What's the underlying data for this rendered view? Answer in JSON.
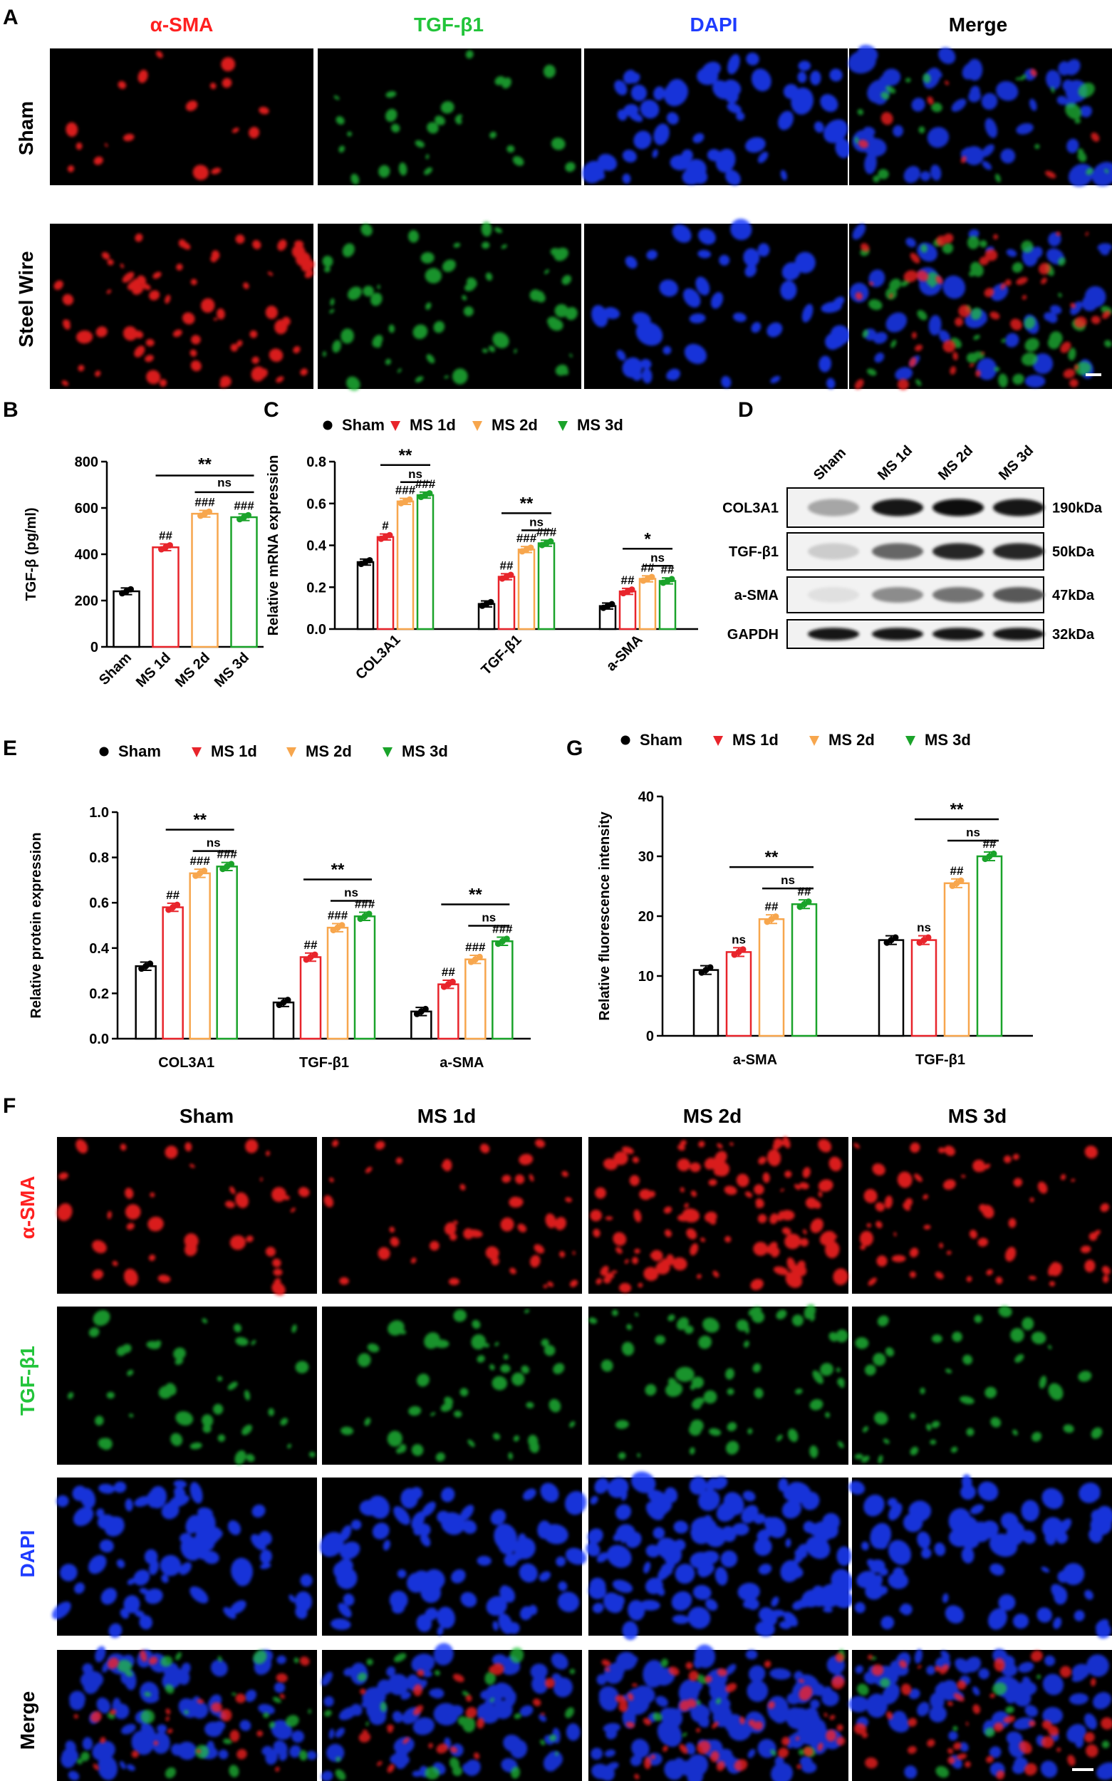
{
  "panel_labels": {
    "a": "A",
    "b": "B",
    "c": "C",
    "d": "D",
    "e": "E",
    "f": "F",
    "g": "G"
  },
  "colors": {
    "sham": "#000000",
    "ms1d": "#e8242b",
    "ms2d": "#f7a64d",
    "ms3d": "#1aa32a",
    "red_stain": "#ff2020",
    "green_stain": "#22c43a",
    "blue_stain": "#1f3cff"
  },
  "panel_a": {
    "columns": [
      "α-SMA",
      "TGF-β1",
      "DAPI",
      "Merge"
    ],
    "rows": [
      "Sham",
      "Steel Wire"
    ]
  },
  "panel_d": {
    "lanes": [
      "Sham",
      "MS 1d",
      "MS 2d",
      "MS 3d"
    ],
    "bands": [
      {
        "name": "COL3A1",
        "size": "190kDa",
        "intensity": [
          0.35,
          0.9,
          0.95,
          0.92
        ]
      },
      {
        "name": "TGF-β1",
        "size": "50kDa",
        "intensity": [
          0.2,
          0.6,
          0.85,
          0.85
        ]
      },
      {
        "name": "a-SMA",
        "size": "47kDa",
        "intensity": [
          0.12,
          0.45,
          0.55,
          0.65
        ]
      },
      {
        "name": "GAPDH",
        "size": "32kDa",
        "intensity": [
          0.9,
          0.9,
          0.9,
          0.9
        ]
      }
    ]
  },
  "panel_f": {
    "columns": [
      "Sham",
      "MS 1d",
      "MS 2d",
      "MS 3d"
    ],
    "rows": [
      "α-SMA",
      "TGF-β1",
      "DAPI",
      "Merge"
    ]
  },
  "chart_data": [
    {
      "id": "B",
      "type": "bar",
      "categories": [
        "Sham",
        "MS 1d",
        "MS 2d",
        "MS 3d"
      ],
      "values": [
        240,
        430,
        575,
        560
      ],
      "ylabel": "TGF-β (pg/ml)",
      "ylim": [
        0,
        800
      ],
      "yticks": [
        0,
        200,
        400,
        600,
        800
      ],
      "annotations": [
        "",
        "##",
        "###",
        "###"
      ],
      "brackets": [
        {
          "from": 1,
          "to": 3,
          "label": "**"
        },
        {
          "from": 2,
          "to": 3,
          "label": "ns"
        }
      ]
    },
    {
      "id": "C",
      "type": "bar",
      "categories": [
        "COL3A1",
        "TGF-β1",
        "a-SMA"
      ],
      "series": [
        {
          "name": "Sham",
          "values": [
            0.32,
            0.12,
            0.11
          ]
        },
        {
          "name": "MS 1d",
          "values": [
            0.44,
            0.25,
            0.18
          ]
        },
        {
          "name": "MS 2d",
          "values": [
            0.61,
            0.38,
            0.24
          ]
        },
        {
          "name": "MS 3d",
          "values": [
            0.64,
            0.41,
            0.23
          ]
        }
      ],
      "annotations": [
        [
          "",
          "#",
          "###",
          "###"
        ],
        [
          "",
          "##",
          "###",
          "###"
        ],
        [
          "",
          "##",
          "##",
          "##"
        ]
      ],
      "brackets": [
        [
          {
            "from": 1,
            "to": 3,
            "label": "**"
          },
          {
            "from": 2,
            "to": 3,
            "label": "ns"
          }
        ],
        [
          {
            "from": 1,
            "to": 3,
            "label": "**"
          },
          {
            "from": 2,
            "to": 3,
            "label": "ns"
          }
        ],
        [
          {
            "from": 1,
            "to": 3,
            "label": "*"
          },
          {
            "from": 2,
            "to": 3,
            "label": "ns"
          }
        ]
      ],
      "ylabel": "Relative mRNA expression",
      "ylim": [
        0,
        0.8
      ],
      "yticks": [
        "0.0",
        "0.2",
        "0.4",
        "0.6",
        "0.8"
      ],
      "legend": "top"
    },
    {
      "id": "E",
      "type": "bar",
      "categories": [
        "COL3A1",
        "TGF-β1",
        "a-SMA"
      ],
      "series": [
        {
          "name": "Sham",
          "values": [
            0.32,
            0.16,
            0.12
          ]
        },
        {
          "name": "MS 1d",
          "values": [
            0.58,
            0.36,
            0.24
          ]
        },
        {
          "name": "MS 2d",
          "values": [
            0.73,
            0.49,
            0.35
          ]
        },
        {
          "name": "MS 3d",
          "values": [
            0.76,
            0.54,
            0.43
          ]
        }
      ],
      "annotations": [
        [
          "",
          "##",
          "###",
          "###"
        ],
        [
          "",
          "##",
          "###",
          "###"
        ],
        [
          "",
          "##",
          "###",
          "###"
        ]
      ],
      "brackets": [
        [
          {
            "from": 1,
            "to": 3,
            "label": "**"
          },
          {
            "from": 2,
            "to": 3,
            "label": "ns"
          }
        ],
        [
          {
            "from": 1,
            "to": 3,
            "label": "**"
          },
          {
            "from": 2,
            "to": 3,
            "label": "ns"
          }
        ],
        [
          {
            "from": 1,
            "to": 3,
            "label": "**"
          },
          {
            "from": 2,
            "to": 3,
            "label": "ns"
          }
        ]
      ],
      "ylabel": "Relative protein expression",
      "ylim": [
        0,
        1.0
      ],
      "yticks": [
        "0.0",
        "0.2",
        "0.4",
        "0.6",
        "0.8",
        "1.0"
      ],
      "legend": "top"
    },
    {
      "id": "G",
      "type": "bar",
      "categories": [
        "a-SMA",
        "TGF-β1"
      ],
      "series": [
        {
          "name": "Sham",
          "values": [
            11,
            16
          ]
        },
        {
          "name": "MS 1d",
          "values": [
            14,
            16
          ]
        },
        {
          "name": "MS 2d",
          "values": [
            19.5,
            25.5
          ]
        },
        {
          "name": "MS 3d",
          "values": [
            22,
            30
          ]
        }
      ],
      "annotations": [
        [
          "",
          "ns",
          "##",
          "##"
        ],
        [
          "",
          "ns",
          "##",
          "##"
        ]
      ],
      "brackets": [
        [
          {
            "from": 1,
            "to": 3,
            "label": "**"
          },
          {
            "from": 2,
            "to": 3,
            "label": "ns"
          }
        ],
        [
          {
            "from": 1,
            "to": 3,
            "label": "**"
          },
          {
            "from": 2,
            "to": 3,
            "label": "ns"
          }
        ]
      ],
      "ylabel": "Relative fluorescence intensity",
      "ylim": [
        0,
        40
      ],
      "yticks": [
        "0",
        "10",
        "20",
        "30",
        "40"
      ],
      "legend": "top"
    }
  ]
}
